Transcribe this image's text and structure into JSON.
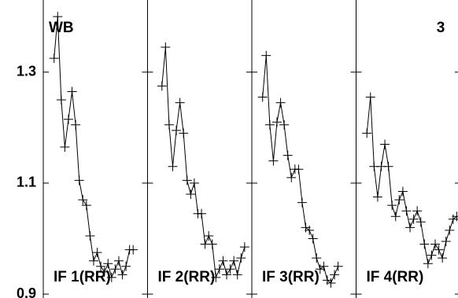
{
  "chart_data": {
    "type": "line",
    "color": "#000000",
    "ylim": [
      0.893,
      1.43
    ],
    "yticks": [
      0.9,
      1.1,
      1.3
    ],
    "xlim": [
      0,
      29
    ],
    "annotations": [
      "WB",
      "3"
    ],
    "series": [
      {
        "name": "IF 1(RR)",
        "x": [
          3,
          4,
          5,
          6,
          7,
          8,
          9,
          10,
          11,
          12,
          13,
          14,
          15,
          16,
          17,
          18,
          19,
          20,
          21,
          22,
          23,
          24,
          25
        ],
        "values": [
          1.325,
          1.4,
          1.25,
          1.165,
          1.215,
          1.265,
          1.205,
          1.105,
          1.07,
          1.06,
          1.005,
          0.96,
          0.975,
          0.95,
          0.94,
          0.955,
          0.93,
          0.945,
          0.96,
          0.935,
          0.95,
          0.98,
          0.98
        ]
      },
      {
        "name": "IF 2(RR)",
        "x": [
          4,
          5,
          6,
          7,
          8,
          9,
          10,
          11,
          12,
          13,
          14,
          15,
          16,
          17,
          18,
          19,
          20,
          21,
          22,
          23,
          24,
          25,
          26,
          27
        ],
        "values": [
          1.275,
          1.345,
          1.205,
          1.13,
          1.195,
          1.245,
          1.19,
          1.105,
          1.08,
          1.1,
          1.045,
          1.045,
          0.99,
          1.005,
          0.99,
          0.93,
          0.945,
          0.96,
          0.935,
          0.945,
          0.96,
          0.935,
          0.965,
          0.985
        ]
      },
      {
        "name": "IF 3(RR)",
        "x": [
          3,
          4,
          5,
          6,
          7,
          8,
          9,
          10,
          11,
          12,
          13,
          14,
          15,
          16,
          17,
          18,
          19,
          20,
          21,
          22,
          23,
          24
        ],
        "values": [
          1.255,
          1.33,
          1.205,
          1.14,
          1.21,
          1.245,
          1.205,
          1.15,
          1.11,
          1.125,
          1.125,
          1.065,
          1.02,
          1.015,
          1.0,
          0.965,
          0.945,
          0.95,
          0.925,
          0.92,
          0.935,
          0.95
        ]
      },
      {
        "name": "IF 4(RR)",
        "x": [
          3,
          4,
          5,
          6,
          7,
          8,
          9,
          10,
          11,
          12,
          13,
          14,
          15,
          16,
          17,
          18,
          19,
          20,
          21,
          22,
          23,
          24,
          25,
          26,
          27,
          28
        ],
        "values": [
          1.19,
          1.255,
          1.13,
          1.075,
          1.13,
          1.17,
          1.13,
          1.06,
          1.04,
          1.07,
          1.085,
          1.05,
          1.02,
          1.035,
          1.05,
          1.03,
          0.99,
          0.955,
          0.97,
          0.99,
          0.98,
          0.965,
          0.995,
          1.015,
          1.035,
          1.04
        ]
      }
    ]
  }
}
